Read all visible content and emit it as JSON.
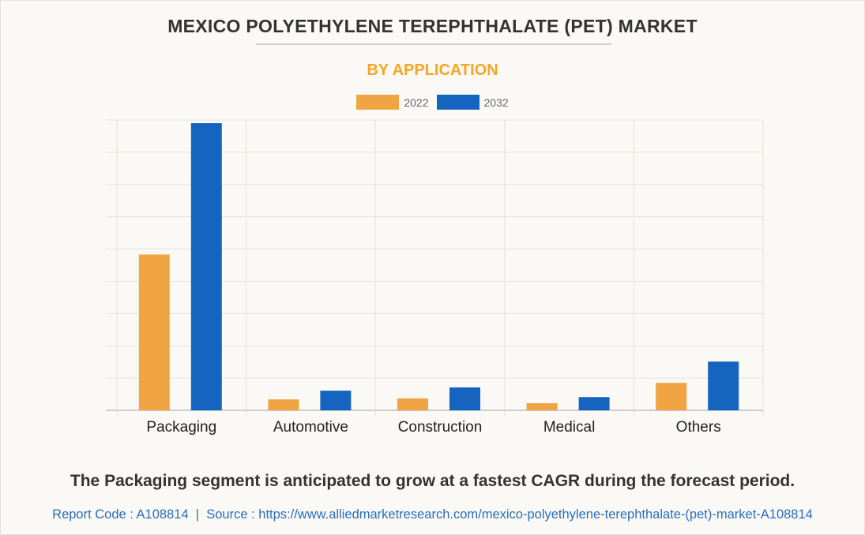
{
  "header": {
    "title": "MEXICO POLYETHYLENE TEREPHTHALATE (PET) MARKET",
    "subtitle": "BY APPLICATION"
  },
  "colors": {
    "series_2022": "#f0a444",
    "series_2032": "#1565c0",
    "subtitle": "#f5a623",
    "footer": "#2a6ebb"
  },
  "chart_data": {
    "type": "bar",
    "title": "MEXICO POLYETHYLENE TEREPHTHALATE (PET) MARKET",
    "subtitle": "BY APPLICATION",
    "categories": [
      "Packaging",
      "Automotive",
      "Construction",
      "Medical",
      "Others"
    ],
    "series": [
      {
        "name": "2022",
        "values": [
          4.83,
          0.34,
          0.37,
          0.22,
          0.85
        ]
      },
      {
        "name": "2032",
        "values": [
          8.9,
          0.61,
          0.71,
          0.41,
          1.51
        ]
      }
    ],
    "xlabel": "",
    "ylabel": "",
    "ylim": [
      0,
      9
    ],
    "y_units": "relative (one gridline interval = 1 unit; no y-axis labels shown)",
    "grid": true,
    "legend": "top-center"
  },
  "footer": {
    "note": "The Packaging segment is anticipated to grow at a fastest CAGR during the forecast period.",
    "source": "Report Code : A108814  |  Source : https://www.alliedmarketresearch.com/mexico-polyethylene-terephthalate-(pet)-market-A108814"
  }
}
